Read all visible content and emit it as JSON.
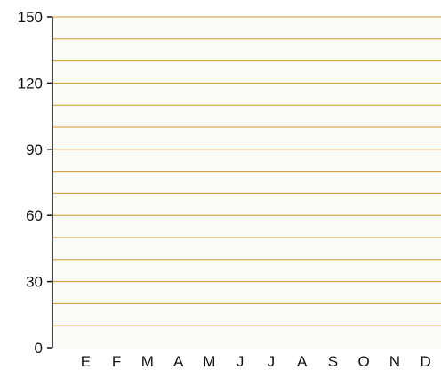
{
  "chart_data": {
    "type": "bar",
    "title": "",
    "xlabel": "",
    "ylabel": "",
    "categories": [
      "E",
      "F",
      "M",
      "A",
      "M",
      "J",
      "J",
      "A",
      "S",
      "O",
      "N",
      "D"
    ],
    "values": [
      0,
      0,
      0,
      0,
      0,
      0,
      0,
      0,
      0,
      0,
      0,
      0
    ],
    "ylim": [
      0,
      150
    ],
    "y_ticks": [
      0,
      30,
      60,
      90,
      120,
      150
    ],
    "minor_gridline_step": 10,
    "grid": true,
    "legend": "none",
    "colors": {
      "gridline": "#d9962a",
      "plot_background": "#fbfcf8",
      "axis": "#111111",
      "bar": "#222222"
    }
  }
}
